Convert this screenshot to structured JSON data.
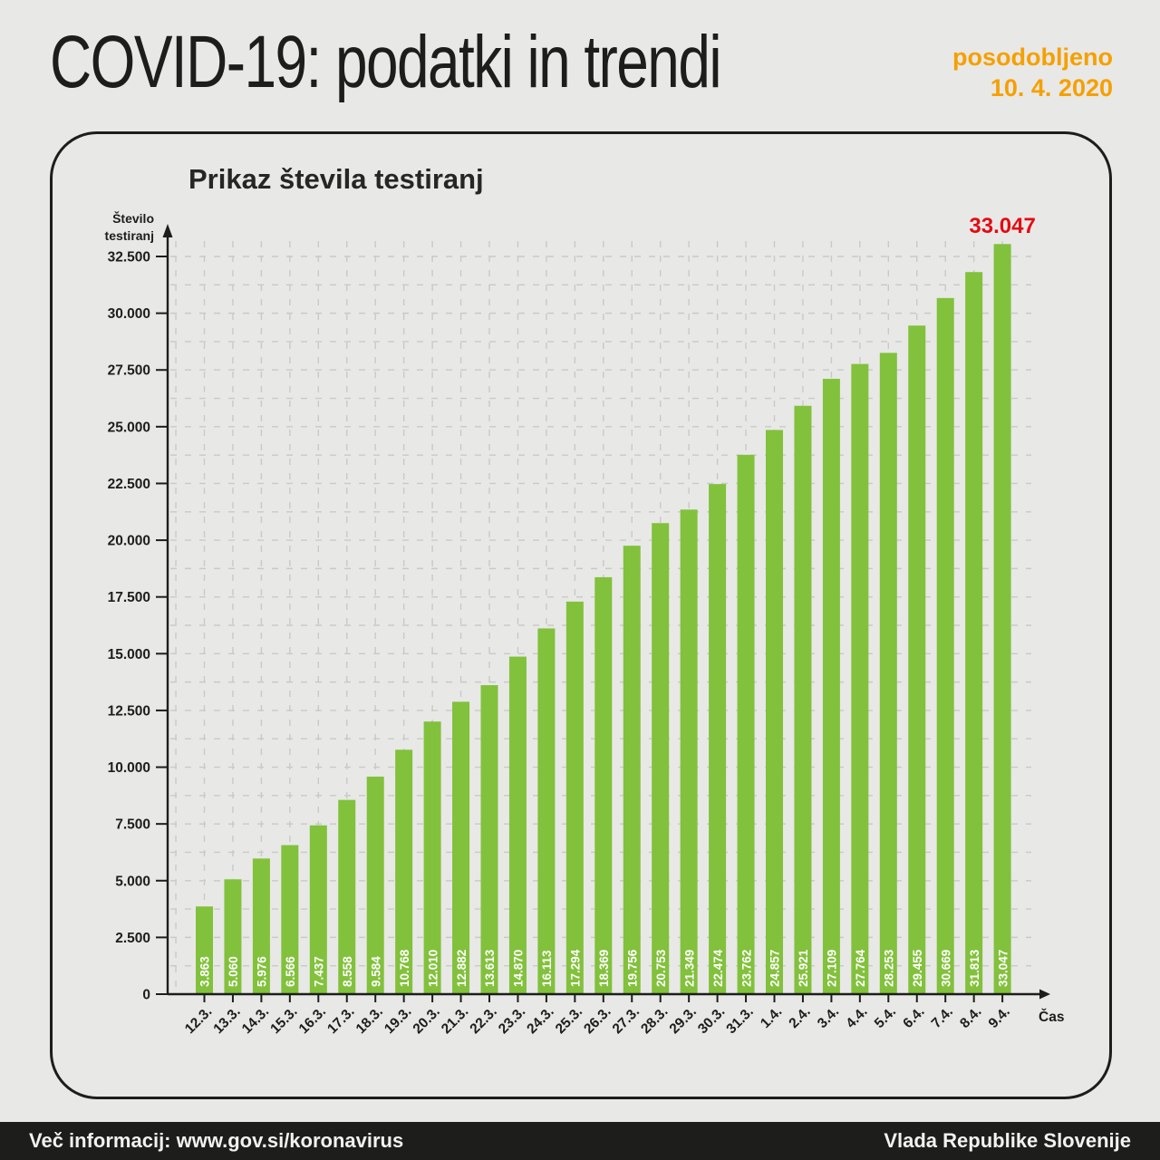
{
  "header": {
    "title": "COVID-19: podatki in trendi",
    "updated_label": "posodobljeno",
    "updated_date": "10. 4. 2020"
  },
  "chart_data": {
    "type": "bar",
    "title": "Prikaz števila testiranj",
    "ylabel_lines": [
      "Število",
      "testiranj"
    ],
    "xlabel": "Čas",
    "categories": [
      "12.3.",
      "13.3.",
      "14.3.",
      "15.3.",
      "16.3.",
      "17.3.",
      "18.3.",
      "19.3.",
      "20.3.",
      "21.3.",
      "22.3.",
      "23.3.",
      "24.3.",
      "25.3.",
      "26.3.",
      "27.3.",
      "28.3.",
      "29.3.",
      "30.3.",
      "31.3.",
      "1.4.",
      "2.4.",
      "3.4.",
      "4.4.",
      "5.4.",
      "6.4.",
      "7.4.",
      "8.4.",
      "9.4."
    ],
    "values": [
      3863,
      5060,
      5976,
      6566,
      7437,
      8558,
      9584,
      10768,
      12010,
      12882,
      13613,
      14870,
      16113,
      17294,
      18369,
      19756,
      20753,
      21349,
      22474,
      23762,
      24857,
      25921,
      27109,
      27764,
      28253,
      29455,
      30669,
      31813,
      33047
    ],
    "value_labels": [
      "3.863",
      "5.060",
      "5.976",
      "6.566",
      "7.437",
      "8.558",
      "9.584",
      "10.768",
      "12.010",
      "12.882",
      "13.613",
      "14.870",
      "16.113",
      "17.294",
      "18.369",
      "19.756",
      "20.753",
      "21.349",
      "22.474",
      "23.762",
      "24.857",
      "25.921",
      "27.109",
      "27.764",
      "28.253",
      "29.455",
      "30.669",
      "31.813",
      "33.047"
    ],
    "highlight_label": "33.047",
    "y_ticks": {
      "values": [
        0,
        2500,
        5000,
        7500,
        10000,
        12500,
        15000,
        17500,
        20000,
        22500,
        25000,
        27500,
        30000,
        32500
      ],
      "labels": [
        "0",
        "2.500",
        "5.000",
        "7.500",
        "10.000",
        "12.500",
        "15.000",
        "17.500",
        "20.000",
        "22.500",
        "25.000",
        "27.500",
        "30.000",
        "32.500"
      ]
    },
    "ylim": [
      0,
      32500
    ],
    "minor_grid_step": 1250,
    "grid": true,
    "legend": "none",
    "colors": {
      "bar": "#82c13c",
      "highlight": "#e30b13",
      "axis": "#1d1d1b",
      "grid": "#c9c9c8",
      "bar_value_text": "#ffffff",
      "accent_orange": "#f5a000"
    }
  },
  "footer": {
    "left": "Več informacij: www.gov.si/koronavirus",
    "right": "Vlada Republike Slovenije"
  }
}
